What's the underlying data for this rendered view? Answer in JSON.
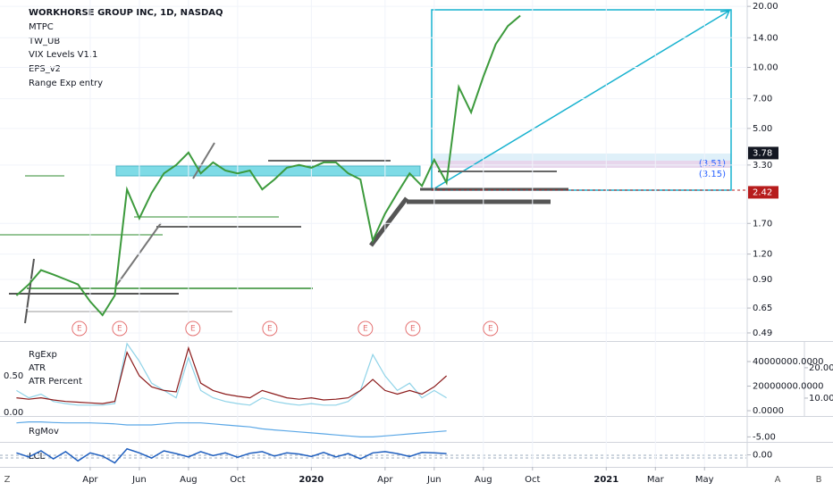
{
  "chart_data": [
    {
      "type": "line",
      "title": "WORKHORSE GROUP INC, 1D, NASDAQ",
      "indicators": [
        "MTPC",
        "TW_UB",
        "VIX Levels V1.1",
        "EPS_v2",
        "Range Exp entry"
      ],
      "log_scale": true,
      "grid": true,
      "xlim": [
        -0.67,
        29.7
      ],
      "xticks": [
        {
          "value": 3,
          "label": "Apr"
        },
        {
          "value": 5,
          "label": "Jun"
        },
        {
          "value": 7,
          "label": "Aug"
        },
        {
          "value": 9,
          "label": "Oct"
        },
        {
          "value": 12,
          "label": "2020"
        },
        {
          "value": 15,
          "label": "Apr"
        },
        {
          "value": 17,
          "label": "Jun"
        },
        {
          "value": 19,
          "label": "Aug"
        },
        {
          "value": 21,
          "label": "Oct"
        },
        {
          "value": 24,
          "label": "2021"
        },
        {
          "value": 26,
          "label": "Mar"
        },
        {
          "value": 28,
          "label": "May"
        }
      ],
      "ylim": [
        0.447,
        21.5
      ],
      "yticks": [
        {
          "value": 20,
          "label": "20.00"
        },
        {
          "value": 14,
          "label": "14.00"
        },
        {
          "value": 10,
          "label": "10.00"
        },
        {
          "value": 7,
          "label": "7.00"
        },
        {
          "value": 5,
          "label": "5.00"
        },
        {
          "value": 3.3,
          "label": "3.30"
        },
        {
          "value": 1.7,
          "label": "1.70"
        },
        {
          "value": 1.2,
          "label": "1.20"
        },
        {
          "value": 0.9,
          "label": "0.90"
        },
        {
          "value": 0.65,
          "label": "0.65"
        },
        {
          "value": 0.49,
          "label": "0.49"
        }
      ],
      "x": [
        0,
        0.5,
        1,
        1.5,
        2,
        2.5,
        3,
        3.5,
        4,
        4.5,
        5,
        5.5,
        6,
        6.5,
        7,
        7.5,
        8,
        8.5,
        9,
        9.5,
        10,
        10.5,
        11,
        11.5,
        12,
        12.5,
        13,
        13.5,
        14,
        14.5,
        15,
        15.5,
        16,
        16.5,
        17,
        17.5,
        18,
        18.5,
        19,
        19.5,
        20,
        20.5
      ],
      "series": [
        {
          "color": "#3c9a3c",
          "values": [
            0.75,
            0.85,
            1.0,
            0.95,
            0.9,
            0.85,
            0.7,
            0.6,
            0.75,
            2.5,
            1.8,
            2.4,
            3.0,
            3.3,
            3.8,
            3.0,
            3.4,
            3.1,
            3.0,
            3.1,
            2.5,
            2.8,
            3.2,
            3.3,
            3.2,
            3.4,
            3.4,
            3.0,
            2.8,
            1.4,
            1.9,
            2.4,
            3.0,
            2.6,
            3.5,
            2.7,
            8,
            6,
            9,
            13,
            16,
            18
          ]
        }
      ],
      "price_labels": [
        {
          "value": 3.78,
          "label": "3.78",
          "color": "#131722"
        },
        {
          "value": 2.42,
          "label": "2.42",
          "color": "#b71c1c"
        }
      ],
      "annotations": [
        "(3.51)",
        "(3.15)"
      ],
      "earnings": {
        "label": "E",
        "x": [
          2.56,
          4.2,
          7.18,
          10.31,
          14.2,
          16.13,
          19.29
        ]
      }
    },
    {
      "type": "line",
      "legend": [
        "RgExp",
        "ATR",
        "ATR Percent"
      ],
      "ylim": [
        -0.037,
        0.963
      ],
      "yticks": [
        {
          "value": 0.5,
          "label": "0.50"
        },
        {
          "value": 0,
          "label": "0.00"
        }
      ],
      "y2lim": [
        -3600000,
        56000000
      ],
      "y2ticks": [
        {
          "value": 40000000,
          "label": "40000000.0000"
        },
        {
          "value": 20000000,
          "label": "20000000.0000"
        },
        {
          "value": 0,
          "label": "0.0000"
        }
      ],
      "y3lim": [
        4.4,
        28.5
      ],
      "y3ticks": [
        {
          "value": 20,
          "label": "20.00"
        },
        {
          "value": 10,
          "label": "10.00"
        }
      ],
      "x": [
        0,
        0.5,
        1,
        1.5,
        2,
        2.5,
        3,
        3.5,
        4,
        4.5,
        5,
        5.5,
        6,
        6.5,
        7,
        7.5,
        8,
        8.5,
        9,
        9.5,
        10,
        10.5,
        11,
        11.5,
        12,
        12.5,
        13,
        13.5,
        14,
        14.5,
        15,
        15.5,
        16,
        16.5,
        17,
        17.5
      ],
      "series": [
        {
          "color": "#8fd3e8",
          "values": [
            0.3,
            0.2,
            0.25,
            0.15,
            0.12,
            0.1,
            0.1,
            0.1,
            0.12,
            0.94,
            0.7,
            0.4,
            0.3,
            0.2,
            0.75,
            0.3,
            0.2,
            0.15,
            0.12,
            0.1,
            0.2,
            0.15,
            0.12,
            0.1,
            0.12,
            0.1,
            0.1,
            0.15,
            0.3,
            0.79,
            0.5,
            0.3,
            0.4,
            0.2,
            0.3,
            0.2
          ]
        },
        {
          "color": "#8b1a1a",
          "values": [
            0.2,
            0.18,
            0.2,
            0.17,
            0.15,
            0.14,
            0.13,
            0.12,
            0.15,
            0.82,
            0.5,
            0.35,
            0.3,
            0.28,
            0.88,
            0.4,
            0.3,
            0.25,
            0.22,
            0.2,
            0.3,
            0.25,
            0.2,
            0.18,
            0.2,
            0.17,
            0.18,
            0.2,
            0.3,
            0.45,
            0.3,
            0.25,
            0.3,
            0.25,
            0.35,
            0.5
          ]
        }
      ]
    },
    {
      "type": "line",
      "title": "RgMov",
      "ylim": [
        -7.5,
        5
      ],
      "yticks": [
        {
          "value": -5,
          "label": "-5.00"
        }
      ],
      "x": [
        0,
        0.5,
        1,
        1.5,
        2,
        2.5,
        3,
        3.5,
        4,
        4.5,
        5,
        5.5,
        6,
        6.5,
        7,
        7.5,
        8,
        8.5,
        9,
        9.5,
        10,
        10.5,
        11,
        11.5,
        12,
        12.5,
        13,
        13.5,
        14,
        14.5,
        15,
        15.5,
        16,
        16.5,
        17,
        17.5
      ],
      "series": [
        {
          "color": "#5aa7e6",
          "values": [
            2,
            2.5,
            2.5,
            2.2,
            2,
            2,
            2,
            1.8,
            1.5,
            1,
            1,
            1,
            1.5,
            2,
            2,
            2,
            1.5,
            1,
            0.5,
            0,
            -1,
            -1.5,
            -2,
            -2.5,
            -3,
            -3.5,
            -4,
            -4.5,
            -5,
            -5,
            -4.5,
            -4,
            -3.5,
            -3,
            -2.5,
            -2
          ]
        }
      ]
    },
    {
      "type": "line",
      "title": "LCL",
      "ylim": [
        -3,
        3
      ],
      "yticks": [
        {
          "value": 0,
          "label": "0.00"
        }
      ],
      "x": [
        0,
        0.5,
        1,
        1.5,
        2,
        2.5,
        3,
        3.5,
        4,
        4.5,
        5,
        5.5,
        6,
        6.5,
        7,
        7.5,
        8,
        8.5,
        9,
        9.5,
        10,
        10.5,
        11,
        11.5,
        12,
        12.5,
        13,
        13.5,
        14,
        14.5,
        15,
        15.5,
        16,
        16.5,
        17,
        17.5
      ],
      "series": [
        {
          "color": "#1f5fbf",
          "values": [
            0.5,
            -0.5,
            1,
            -1,
            0.8,
            -1.5,
            0.5,
            -0.3,
            -2,
            1.5,
            0.5,
            -0.8,
            1,
            0.3,
            -0.5,
            0.8,
            -0.2,
            0.5,
            -0.6,
            0.4,
            0.8,
            -0.3,
            0.5,
            0.2,
            -0.4,
            0.6,
            -0.5,
            0.3,
            -1,
            0.5,
            0.8,
            0.3,
            -0.4,
            0.6,
            0.5,
            0.3
          ]
        }
      ]
    }
  ],
  "footer": {
    "left": "Z",
    "right": [
      "A",
      "B"
    ]
  }
}
